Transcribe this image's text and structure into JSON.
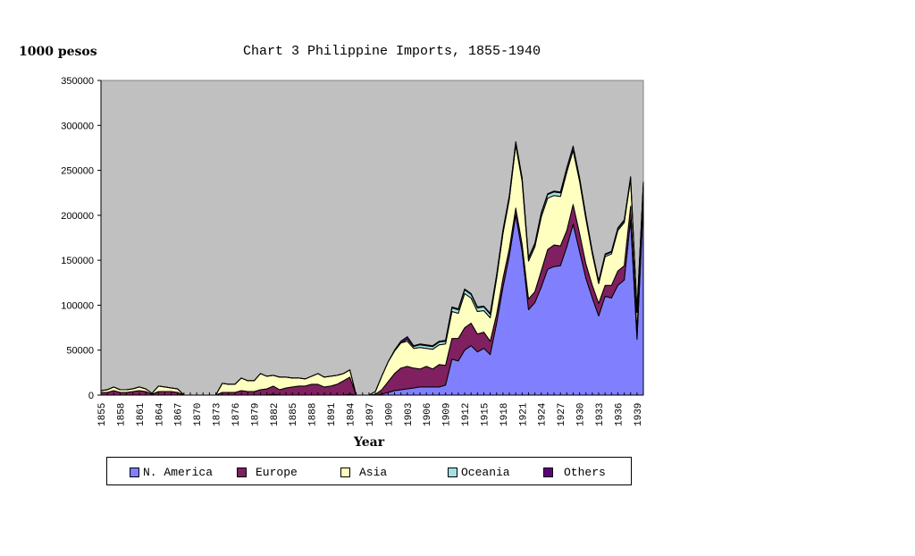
{
  "header": {
    "unit_label": "1000 pesos",
    "title": "Chart 3 Philippine Imports, 1855-1940"
  },
  "axis": {
    "xlabel": "Year",
    "y_ticks": [
      "0",
      "50000",
      "100000",
      "150000",
      "200000",
      "250000",
      "300000",
      "350000"
    ],
    "x_tick_labels": [
      "1855",
      "1858",
      "1861",
      "1864",
      "1867",
      "1870",
      "1873",
      "1876",
      "1879",
      "1882",
      "1885",
      "1888",
      "1891",
      "1894",
      "1897",
      "1900",
      "1903",
      "1906",
      "1909",
      "1912",
      "1915",
      "1918",
      "1921",
      "1924",
      "1927",
      "1930",
      "1933",
      "1936",
      "1939"
    ]
  },
  "legend": {
    "items": [
      {
        "label": "N. America",
        "color": "#8080ff"
      },
      {
        "label": "Europe",
        "color": "#802060"
      },
      {
        "label": "Asia",
        "color": "#ffffc0"
      },
      {
        "label": "Oceania",
        "color": "#a0e0e0"
      },
      {
        "label": "Others",
        "color": "#600080"
      }
    ]
  },
  "colors": {
    "plot_background": "#c0c0c0",
    "outline": "#000000"
  },
  "chart_data": {
    "type": "area",
    "stacked": true,
    "title": "Chart 3 Philippine Imports, 1855-1940",
    "xlabel": "Year",
    "ylabel": "1000 pesos",
    "ylim": [
      0,
      350000
    ],
    "y_ticks": [
      0,
      50000,
      100000,
      150000,
      200000,
      250000,
      300000,
      350000
    ],
    "grid": false,
    "legend_position": "bottom",
    "x": [
      1855,
      1856,
      1857,
      1858,
      1859,
      1860,
      1861,
      1862,
      1863,
      1864,
      1865,
      1866,
      1867,
      1868,
      1869,
      1870,
      1871,
      1872,
      1873,
      1874,
      1875,
      1876,
      1877,
      1878,
      1879,
      1880,
      1881,
      1882,
      1883,
      1884,
      1885,
      1886,
      1887,
      1888,
      1889,
      1890,
      1891,
      1892,
      1893,
      1894,
      1895,
      1896,
      1897,
      1898,
      1899,
      1900,
      1901,
      1902,
      1903,
      1904,
      1905,
      1906,
      1907,
      1908,
      1909,
      1910,
      1911,
      1912,
      1913,
      1914,
      1915,
      1916,
      1917,
      1918,
      1919,
      1920,
      1921,
      1922,
      1923,
      1924,
      1925,
      1926,
      1927,
      1928,
      1929,
      1930,
      1931,
      1932,
      1933,
      1934,
      1935,
      1936,
      1937,
      1938,
      1939,
      1940
    ],
    "series": [
      {
        "name": "N. America",
        "values": [
          0,
          0,
          0,
          0,
          0,
          0,
          0,
          0,
          0,
          0,
          0,
          0,
          0,
          0,
          0,
          0,
          0,
          0,
          0,
          0,
          0,
          0,
          0,
          0,
          0,
          0,
          0,
          1000,
          0,
          0,
          0,
          0,
          0,
          0,
          0,
          0,
          0,
          0,
          0,
          1000,
          0,
          0,
          0,
          0,
          1000,
          3000,
          5000,
          6000,
          7000,
          8000,
          9000,
          9000,
          9000,
          9000,
          11000,
          40000,
          38000,
          50000,
          55000,
          48000,
          52000,
          45000,
          80000,
          120000,
          155000,
          200000,
          160000,
          95000,
          103000,
          120000,
          140000,
          143000,
          144000,
          165000,
          190000,
          160000,
          130000,
          108000,
          88000,
          110000,
          108000,
          122000,
          128000,
          195000,
          62000,
          215000
        ]
      },
      {
        "name": "Europe",
        "values": [
          3000,
          3000,
          5000,
          3000,
          3000,
          4000,
          5000,
          4000,
          1000,
          4000,
          4000,
          4000,
          3000,
          0,
          0,
          0,
          0,
          0,
          0,
          3000,
          3000,
          3000,
          5000,
          4000,
          4000,
          6000,
          7000,
          9000,
          6000,
          8000,
          9000,
          10000,
          10000,
          12000,
          12000,
          9000,
          10000,
          12000,
          16000,
          19000,
          0,
          0,
          0,
          1000,
          5000,
          12000,
          19000,
          24000,
          25000,
          22000,
          20000,
          23000,
          20000,
          25000,
          22000,
          23000,
          25000,
          25000,
          25000,
          20000,
          18000,
          15000,
          10000,
          10000,
          8000,
          8000,
          8000,
          12000,
          12000,
          18000,
          22000,
          24000,
          22000,
          18000,
          22000,
          20000,
          16000,
          14000,
          14000,
          12000,
          14000,
          16000,
          16000,
          15000,
          10000,
          12000
        ]
      },
      {
        "name": "Asia",
        "values": [
          2000,
          3000,
          4000,
          3000,
          3000,
          3000,
          4000,
          3000,
          1000,
          6000,
          5000,
          4000,
          4000,
          0,
          0,
          0,
          0,
          0,
          0,
          10000,
          9000,
          9000,
          14000,
          12000,
          12000,
          18000,
          14000,
          12000,
          14000,
          12000,
          10000,
          9000,
          8000,
          9000,
          12000,
          11000,
          11000,
          10000,
          8000,
          8000,
          0,
          0,
          0,
          3000,
          15000,
          22000,
          25000,
          28000,
          28000,
          22000,
          24000,
          20000,
          22000,
          22000,
          24000,
          30000,
          28000,
          38000,
          28000,
          25000,
          24000,
          26000,
          40000,
          50000,
          55000,
          70000,
          70000,
          42000,
          50000,
          60000,
          57000,
          55000,
          55000,
          65000,
          60000,
          58000,
          50000,
          35000,
          22000,
          32000,
          35000,
          45000,
          48000,
          30000,
          20000,
          8000
        ]
      },
      {
        "name": "Oceania",
        "values": [
          0,
          0,
          0,
          0,
          0,
          0,
          0,
          0,
          0,
          0,
          0,
          0,
          0,
          0,
          0,
          0,
          0,
          0,
          0,
          0,
          0,
          0,
          0,
          0,
          0,
          0,
          0,
          0,
          0,
          0,
          0,
          0,
          0,
          0,
          0,
          0,
          0,
          0,
          0,
          0,
          0,
          0,
          0,
          0,
          0,
          0,
          0,
          0,
          2000,
          2000,
          3000,
          3000,
          3000,
          3000,
          3000,
          4000,
          4000,
          4000,
          4000,
          4000,
          4000,
          4000,
          3000,
          3000,
          3000,
          3000,
          3000,
          3000,
          3000,
          4000,
          4000,
          4000,
          4000,
          4000,
          4000,
          3000,
          3000,
          2000,
          2000,
          2000,
          2000,
          2000,
          2000,
          2000,
          1000,
          1000
        ]
      },
      {
        "name": "Others",
        "values": [
          0,
          0,
          0,
          0,
          0,
          0,
          0,
          0,
          0,
          0,
          0,
          0,
          0,
          0,
          0,
          0,
          0,
          0,
          0,
          0,
          0,
          0,
          0,
          0,
          0,
          0,
          0,
          0,
          0,
          0,
          0,
          0,
          0,
          0,
          0,
          0,
          0,
          0,
          0,
          0,
          0,
          0,
          0,
          0,
          0,
          0,
          1000,
          2000,
          3000,
          1000,
          1000,
          1000,
          1000,
          1000,
          1000,
          1000,
          1000,
          1000,
          1000,
          1000,
          1000,
          1000,
          1000,
          1000,
          1000,
          1000,
          1000,
          1000,
          1000,
          1000,
          1000,
          1000,
          1000,
          1000,
          1000,
          1000,
          1000,
          1000,
          1000,
          1000,
          1000,
          1000,
          1000,
          1000,
          1000,
          1000
        ]
      }
    ]
  }
}
